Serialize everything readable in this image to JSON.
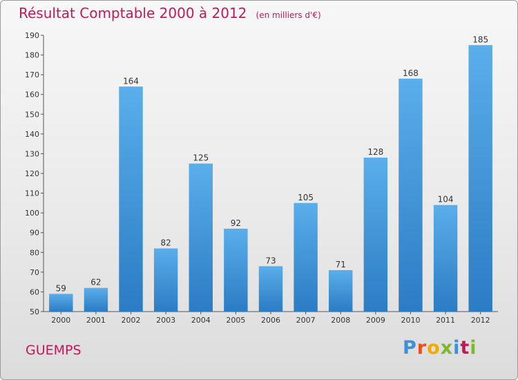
{
  "chart_data": {
    "type": "bar",
    "title": "Résultat Comptable 2000 à 2012",
    "subtitle": "(en milliers d'€)",
    "categories": [
      "2000",
      "2001",
      "2002",
      "2003",
      "2004",
      "2005",
      "2006",
      "2007",
      "2008",
      "2009",
      "2010",
      "2011",
      "2012"
    ],
    "values": [
      59,
      62,
      164,
      82,
      125,
      92,
      73,
      105,
      71,
      128,
      168,
      104,
      185
    ],
    "ylim": [
      50,
      190
    ],
    "yticks": [
      50,
      60,
      70,
      80,
      90,
      100,
      110,
      120,
      130,
      140,
      150,
      160,
      170,
      180,
      190
    ],
    "grid": false,
    "legend": "none",
    "bar_color": "#3d8fd6"
  },
  "footer": {
    "place": "GUEMPS",
    "logo_text": "Proxiti"
  },
  "colors": {
    "title": "#c2185b",
    "logo": [
      "#3d8fd6",
      "#e94e1b",
      "#f2a900",
      "#7cb82f",
      "#3d8fd6",
      "#c2185b",
      "#7cb82f"
    ]
  }
}
